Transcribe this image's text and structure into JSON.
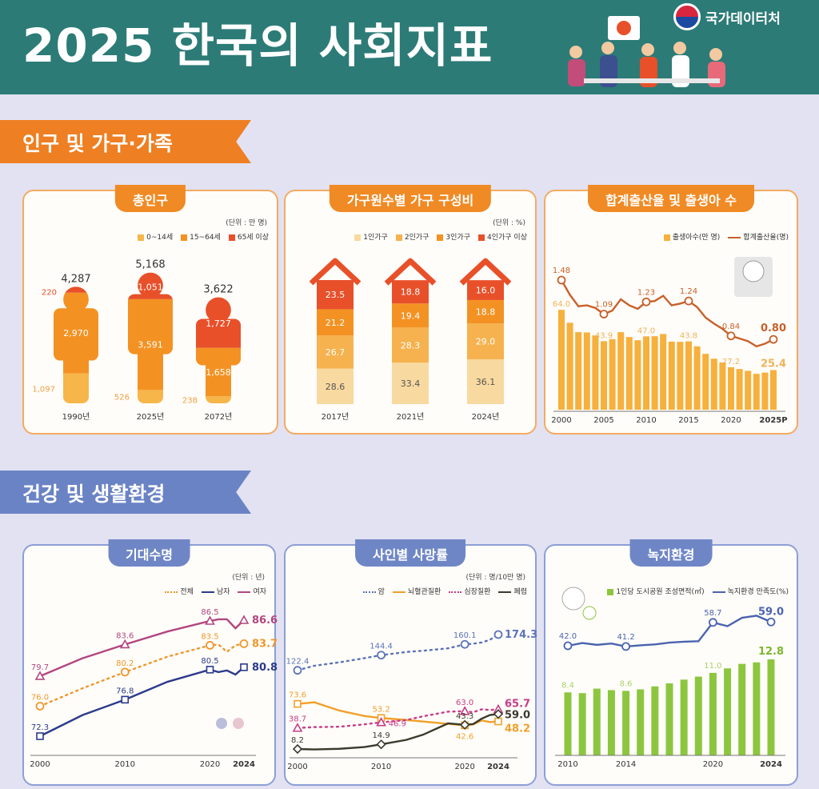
{
  "header": {
    "title": "2025 한국의 사회지표",
    "org": "국가데이터처"
  },
  "sections": [
    "인구 및 가구·가족",
    "건강 및 생활환경"
  ],
  "colors": {
    "teal": "#2c7b77",
    "orange": "#f08a24",
    "blue": "#6f86c6",
    "red": "#e8502a",
    "light_orange": "#f7b64a",
    "pale": "#f5d79a",
    "green": "#8cc63f"
  },
  "chart_data": [
    {
      "type": "bar",
      "title": "총인구",
      "unit": "(단위 : 만 명)",
      "stacked": true,
      "categories": [
        "1990년",
        "2025년",
        "2072년"
      ],
      "series": [
        {
          "name": "0~14세",
          "values": [
            1097,
            526,
            238
          ],
          "color": "#f7b64a"
        },
        {
          "name": "15~64세",
          "values": [
            2970,
            3591,
            1658
          ],
          "color": "#f39223"
        },
        {
          "name": "65세 이상",
          "values": [
            220,
            1051,
            1727
          ],
          "color": "#e8502a"
        }
      ],
      "totals": [
        "4,287",
        "5,168",
        "3,622"
      ],
      "value_labels": [
        [
          "1,097",
          "526",
          "238"
        ],
        [
          "2,970",
          "3,591",
          "1,658"
        ],
        [
          "220",
          "1,051",
          "1,727"
        ]
      ]
    },
    {
      "type": "bar",
      "title": "가구원수별 가구 구성비",
      "unit": "(단위 : %)",
      "stacked": true,
      "categories": [
        "2017년",
        "2021년",
        "2024년"
      ],
      "series": [
        {
          "name": "1인가구",
          "values": [
            28.6,
            33.4,
            36.1
          ],
          "color": "#f8d9a0"
        },
        {
          "name": "2인가구",
          "values": [
            26.7,
            28.3,
            29.0
          ],
          "color": "#f6b24f"
        },
        {
          "name": "3인가구",
          "values": [
            21.2,
            19.4,
            18.8
          ],
          "color": "#f39223"
        },
        {
          "name": "4인가구 이상",
          "values": [
            23.5,
            18.8,
            16.0
          ],
          "color": "#e8502a"
        }
      ]
    },
    {
      "type": "bar+line",
      "title": "합계출산율 및 출생아 수",
      "x": [
        2000,
        2001,
        2002,
        2003,
        2004,
        2005,
        2006,
        2007,
        2008,
        2009,
        2010,
        2011,
        2012,
        2013,
        2014,
        2015,
        2016,
        2017,
        2018,
        2019,
        2020,
        2021,
        2022,
        2023,
        2024,
        2025
      ],
      "x_ticks": [
        "2000",
        "2005",
        "2010",
        "2015",
        "2020",
        "2025P"
      ],
      "series": [
        {
          "name": "출생아수(만 명)",
          "type": "bar",
          "color": "#f6b03c",
          "values": [
            64.0,
            55.7,
            49.7,
            49.5,
            47.6,
            43.9,
            45.2,
            49.7,
            46.6,
            44.5,
            47.0,
            47.1,
            48.5,
            43.6,
            43.5,
            43.8,
            40.6,
            35.8,
            32.7,
            30.3,
            27.2,
            26.1,
            24.9,
            23.0,
            23.8,
            25.4
          ],
          "labeled": [
            2000,
            2005,
            2010,
            2015,
            2020,
            2025
          ]
        },
        {
          "name": "합계출산율(명)",
          "type": "line",
          "color": "#c8602a",
          "values": [
            1.48,
            1.31,
            1.18,
            1.19,
            1.16,
            1.09,
            1.13,
            1.26,
            1.19,
            1.15,
            1.23,
            1.24,
            1.3,
            1.19,
            1.21,
            1.24,
            1.17,
            1.05,
            0.98,
            0.92,
            0.84,
            0.81,
            0.78,
            0.72,
            0.75,
            0.8
          ],
          "labeled": [
            2000,
            2005,
            2010,
            2015,
            2020,
            2025
          ]
        }
      ]
    },
    {
      "type": "line",
      "title": "기대수명",
      "unit": "(단위 : 년)",
      "x": [
        2000,
        2005,
        2010,
        2015,
        2020,
        2021,
        2022,
        2023,
        2024
      ],
      "x_ticks": [
        "2000",
        "2010",
        "2020",
        "2024"
      ],
      "series": [
        {
          "name": "전체",
          "color": "#f0962a",
          "marker": "circle",
          "dash": true,
          "values": [
            76.0,
            78.2,
            80.2,
            82.1,
            83.5,
            83.6,
            82.7,
            83.5,
            83.7
          ],
          "labeled": [
            2000,
            2010,
            2020,
            2024
          ]
        },
        {
          "name": "남자",
          "color": "#2b3a8c",
          "marker": "square",
          "values": [
            72.3,
            74.9,
            76.8,
            79.0,
            80.5,
            80.2,
            80.4,
            79.9,
            80.8
          ],
          "labeled": [
            2000,
            2010,
            2020,
            2024
          ]
        },
        {
          "name": "여자",
          "color": "#b2467f",
          "marker": "triangle",
          "values": [
            79.7,
            81.9,
            83.6,
            85.2,
            86.5,
            86.7,
            86.7,
            85.6,
            86.6
          ],
          "labeled": [
            2000,
            2010,
            2020,
            2024
          ]
        }
      ]
    },
    {
      "type": "line",
      "title": "사인별 사망률",
      "unit": "(단위 : 명/10만 명)",
      "x": [
        2000,
        2002,
        2005,
        2008,
        2010,
        2013,
        2015,
        2018,
        2020,
        2021,
        2022,
        2023,
        2024
      ],
      "x_ticks": [
        "2000",
        "2010",
        "2020",
        "2024"
      ],
      "series": [
        {
          "name": "암",
          "color": "#5b73b8",
          "marker": "circle",
          "dash": true,
          "values": [
            122.4,
            129.0,
            134.0,
            140.0,
            144.4,
            149.0,
            150.8,
            154.3,
            160.1,
            161.1,
            162.7,
            166.7,
            174.3
          ],
          "labeled": [
            2000,
            2010,
            2020,
            2024
          ]
        },
        {
          "name": "뇌혈관질환",
          "color": "#f0a02a",
          "marker": "square",
          "values": [
            73.6,
            76.0,
            64.0,
            56.0,
            53.2,
            50.3,
            48.0,
            44.7,
            42.6,
            44.0,
            49.6,
            47.3,
            48.2
          ],
          "labeled": [
            2000,
            2010,
            2020,
            2024
          ]
        },
        {
          "name": "심장질환",
          "color": "#c73c86",
          "marker": "triangle",
          "dash": true,
          "values": [
            38.7,
            40.0,
            40.5,
            44.0,
            46.9,
            50.2,
            55.6,
            62.4,
            63.0,
            61.5,
            65.8,
            64.8,
            65.7
          ],
          "labeled": [
            2000,
            2010,
            2020,
            2024
          ]
        },
        {
          "name": "폐렴",
          "color": "#3b3a2e",
          "marker": "diamond",
          "values": [
            8.2,
            7.5,
            8.5,
            11.0,
            14.9,
            21.4,
            28.9,
            45.4,
            43.3,
            44.4,
            52.1,
            57.5,
            59.0
          ],
          "labeled": [
            2000,
            2010,
            2020,
            2024
          ]
        }
      ]
    },
    {
      "type": "bar+line",
      "title": "녹지환경",
      "x": [
        2010,
        2011,
        2012,
        2013,
        2014,
        2015,
        2016,
        2017,
        2018,
        2019,
        2020,
        2021,
        2022,
        2023,
        2024
      ],
      "x_ticks": [
        "2010",
        "2014",
        "2020",
        "2024"
      ],
      "series": [
        {
          "name": "1인당 도시공원 조성면적(㎡)",
          "type": "bar",
          "color": "#8cc63f",
          "values": [
            8.4,
            8.3,
            8.9,
            8.7,
            8.6,
            8.8,
            9.2,
            9.6,
            10.1,
            10.5,
            11.0,
            11.6,
            12.2,
            12.4,
            12.8
          ],
          "labeled": [
            2010,
            2014,
            2020,
            2024
          ]
        },
        {
          "name": "녹지환경 만족도(%)",
          "type": "line",
          "color": "#4a63b0",
          "values": [
            42.0,
            45.0,
            43.0,
            44.5,
            41.2,
            42.5,
            43.5,
            45.5,
            46.5,
            47.0,
            58.7,
            56.0,
            62.0,
            63.5,
            59.0
          ],
          "labeled": [
            2010,
            2014,
            2020,
            2024
          ]
        }
      ]
    }
  ]
}
